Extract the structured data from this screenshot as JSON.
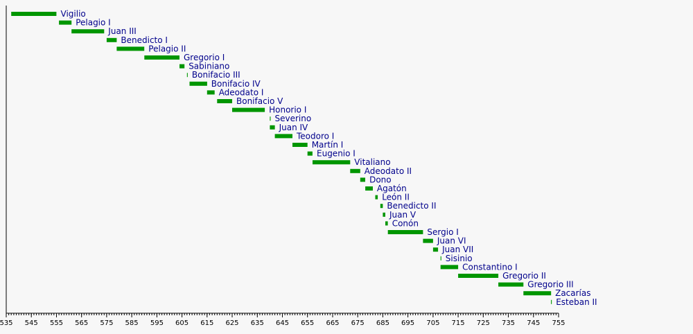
{
  "chart_data": {
    "type": "bar",
    "orientation": "horizontal-timeline",
    "title": "",
    "xlabel": "",
    "ylabel": "",
    "xlim": [
      535,
      755
    ],
    "x_ticks": [
      535,
      545,
      555,
      565,
      575,
      585,
      595,
      605,
      615,
      625,
      635,
      645,
      655,
      665,
      675,
      685,
      695,
      705,
      715,
      725,
      735,
      745,
      755
    ],
    "bar_color": "#009600",
    "label_color": "#00008b",
    "series": [
      {
        "name": "Vigilio",
        "start": 537,
        "end": 555
      },
      {
        "name": "Pelagio I",
        "start": 556,
        "end": 561
      },
      {
        "name": "Juan III",
        "start": 561,
        "end": 574
      },
      {
        "name": "Benedicto I",
        "start": 575,
        "end": 579
      },
      {
        "name": "Pelagio II",
        "start": 579,
        "end": 590
      },
      {
        "name": "Gregorio I",
        "start": 590,
        "end": 604
      },
      {
        "name": "Sabiniano",
        "start": 604,
        "end": 606
      },
      {
        "name": "Bonifacio III",
        "start": 607,
        "end": 607.3
      },
      {
        "name": "Bonifacio IV",
        "start": 608,
        "end": 615
      },
      {
        "name": "Adeodato I",
        "start": 615,
        "end": 618
      },
      {
        "name": "Bonifacio V",
        "start": 619,
        "end": 625
      },
      {
        "name": "Honorio I",
        "start": 625,
        "end": 638
      },
      {
        "name": "Severino",
        "start": 640,
        "end": 640.3
      },
      {
        "name": "Juan IV",
        "start": 640,
        "end": 642
      },
      {
        "name": "Teodoro I",
        "start": 642,
        "end": 649
      },
      {
        "name": "Martín I",
        "start": 649,
        "end": 655
      },
      {
        "name": "Eugenio I",
        "start": 655,
        "end": 657
      },
      {
        "name": "Vitaliano",
        "start": 657,
        "end": 672
      },
      {
        "name": "Adeodato II",
        "start": 672,
        "end": 676
      },
      {
        "name": "Dono",
        "start": 676,
        "end": 678
      },
      {
        "name": "Agatón",
        "start": 678,
        "end": 681
      },
      {
        "name": "León II",
        "start": 682,
        "end": 683
      },
      {
        "name": "Benedicto II",
        "start": 684,
        "end": 685
      },
      {
        "name": "Juan V",
        "start": 685,
        "end": 686
      },
      {
        "name": "Conón",
        "start": 686,
        "end": 687
      },
      {
        "name": "Sergio I",
        "start": 687,
        "end": 701
      },
      {
        "name": "Juan VI",
        "start": 701,
        "end": 705
      },
      {
        "name": "Juan VII",
        "start": 705,
        "end": 707
      },
      {
        "name": "Sisinio",
        "start": 708,
        "end": 708.3
      },
      {
        "name": "Constantino I",
        "start": 708,
        "end": 715
      },
      {
        "name": "Gregorio II",
        "start": 715,
        "end": 731
      },
      {
        "name": "Gregorio III",
        "start": 731,
        "end": 741
      },
      {
        "name": "Zacarías",
        "start": 741,
        "end": 752
      },
      {
        "name": "Esteban II",
        "start": 752,
        "end": 752.3
      }
    ]
  }
}
